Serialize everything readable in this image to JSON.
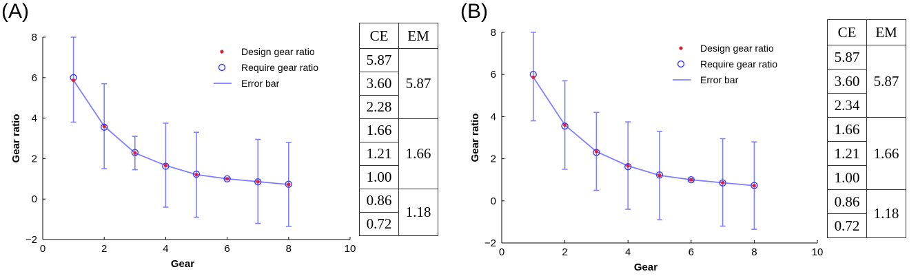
{
  "chart_data": [
    {
      "panel_label": "(A)",
      "type": "line",
      "xlabel": "Gear",
      "ylabel": "Gear ratio",
      "xlim": [
        0,
        10
      ],
      "ylim": [
        -2,
        8
      ],
      "xticks": [
        0,
        2,
        4,
        6,
        8,
        10
      ],
      "yticks": [
        -2,
        0,
        2,
        4,
        6,
        8
      ],
      "x": [
        1,
        2,
        3,
        4,
        5,
        6,
        7,
        8
      ],
      "series": [
        {
          "name": "Design gear ratio",
          "marker": "dot",
          "color": "#e0203a",
          "values": [
            5.87,
            3.6,
            2.28,
            1.66,
            1.21,
            1.0,
            0.86,
            0.72
          ]
        },
        {
          "name": "Require gear ratio",
          "marker": "circle",
          "color": "#3a3aff",
          "values": [
            6.0,
            3.55,
            2.3,
            1.62,
            1.23,
            1.0,
            0.85,
            0.73
          ]
        },
        {
          "name": "Error bar",
          "marker": "line",
          "color": "#8080ff",
          "err_low": [
            3.8,
            1.5,
            1.45,
            -0.4,
            -0.9,
            0.95,
            -1.2,
            -1.35
          ],
          "err_high": [
            8.0,
            5.7,
            3.1,
            3.75,
            3.3,
            1.05,
            2.95,
            2.8
          ]
        }
      ],
      "legend": [
        "Design gear ratio",
        "Require gear ratio",
        "Error bar"
      ],
      "legend_position": "top-right",
      "table": {
        "headers": [
          "CE",
          "EM"
        ],
        "ce": [
          "5.87",
          "3.60",
          "2.28",
          "1.66",
          "1.21",
          "1.00",
          "0.86",
          "0.72"
        ],
        "em_groups": [
          {
            "label": "5.87",
            "span": 3
          },
          {
            "label": "1.66",
            "span": 3
          },
          {
            "label": "1.18",
            "span": 2
          }
        ]
      }
    },
    {
      "panel_label": "(B)",
      "type": "line",
      "xlabel": "Gear",
      "ylabel": "Gear ratio",
      "xlim": [
        0,
        10
      ],
      "ylim": [
        -2,
        8
      ],
      "xticks": [
        0,
        2,
        4,
        6,
        8,
        10
      ],
      "yticks": [
        -2,
        0,
        2,
        4,
        6,
        8
      ],
      "x": [
        1,
        2,
        3,
        4,
        5,
        6,
        7,
        8
      ],
      "series": [
        {
          "name": "Design gear ratio",
          "marker": "dot",
          "color": "#e0203a",
          "values": [
            5.87,
            3.6,
            2.34,
            1.66,
            1.21,
            1.0,
            0.86,
            0.72
          ]
        },
        {
          "name": "Require gear ratio",
          "marker": "circle",
          "color": "#3a3aff",
          "values": [
            6.0,
            3.55,
            2.3,
            1.62,
            1.23,
            1.0,
            0.85,
            0.73
          ]
        },
        {
          "name": "Error bar",
          "marker": "line",
          "color": "#8080ff",
          "err_low": [
            3.8,
            1.5,
            0.5,
            -0.4,
            -0.9,
            0.95,
            -1.2,
            -1.35
          ],
          "err_high": [
            8.0,
            5.7,
            4.2,
            3.75,
            3.3,
            1.05,
            2.95,
            2.8
          ]
        }
      ],
      "legend": [
        "Design gear ratio",
        "Require gear ratio",
        "Error bar"
      ],
      "legend_position": "top-right",
      "table": {
        "headers": [
          "CE",
          "EM"
        ],
        "ce": [
          "5.87",
          "3.60",
          "2.34",
          "1.66",
          "1.21",
          "1.00",
          "0.86",
          "0.72"
        ],
        "em_groups": [
          {
            "label": "5.87",
            "span": 3
          },
          {
            "label": "1.66",
            "span": 3
          },
          {
            "label": "1.18",
            "span": 2
          }
        ]
      }
    }
  ]
}
